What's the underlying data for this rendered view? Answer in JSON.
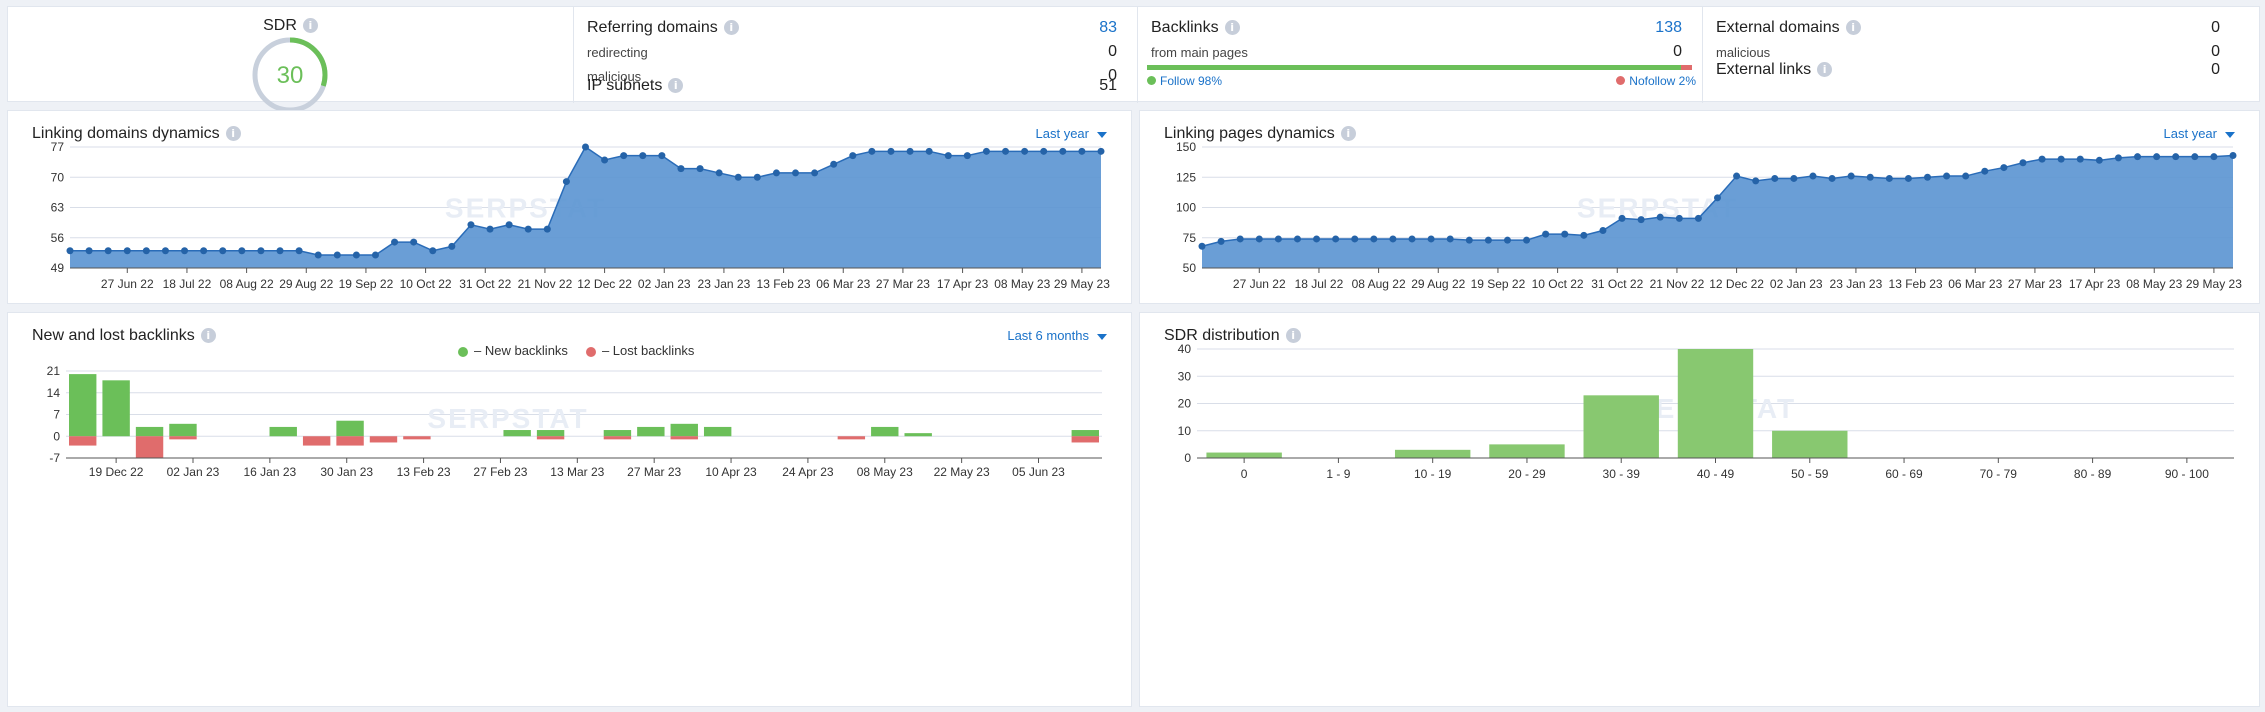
{
  "summary": {
    "sdr": {
      "label": "SDR",
      "value": "30",
      "score": 30,
      "color": "#6bbf59"
    },
    "referring": {
      "title": "Referring domains",
      "value": "83",
      "redirecting_label": "redirecting",
      "redirecting_value": "0",
      "malicious_label": "malicious",
      "malicious_value": "0",
      "ip_label": "IP subnets",
      "ip_value": "51"
    },
    "backlinks": {
      "title": "Backlinks",
      "value": "138",
      "from_main_label": "from main pages",
      "from_main_value": "0",
      "follow_label": "Follow 98%",
      "nofollow_label": "Nofollow 2%",
      "follow_pct": 98,
      "follow_color": "#6bbf59",
      "nofollow_color": "#e06c6c"
    },
    "external": {
      "title": "External domains",
      "value": "0",
      "malicious_label": "malicious",
      "malicious_value": "0",
      "links_title": "External links",
      "links_value": "0"
    }
  },
  "colors": {
    "accent": "#1a72c9",
    "area": "#5a93d1",
    "line": "#2a6cb8",
    "new": "#6bbf59",
    "lost": "#e06c6c",
    "sdr_bar": "#88c870"
  },
  "watermark": "SERPSTAT",
  "chart_data": [
    {
      "id": "linking-domains",
      "type": "area",
      "title": "Linking domains dynamics",
      "period": "Last year",
      "ylim": [
        49,
        77
      ],
      "yticks": [
        49,
        56,
        63,
        70,
        77
      ],
      "xtick_labels": [
        "27 Jun 22",
        "18 Jul 22",
        "08 Aug 22",
        "29 Aug 22",
        "19 Sep 22",
        "10 Oct 22",
        "31 Oct 22",
        "21 Nov 22",
        "12 Dec 22",
        "02 Jan 23",
        "23 Jan 23",
        "13 Feb 23",
        "06 Mar 23",
        "27 Mar 23",
        "17 Apr 23",
        "08 May 23",
        "29 May 23"
      ],
      "values": [
        53,
        53,
        53,
        53,
        53,
        53,
        53,
        53,
        53,
        53,
        53,
        53,
        53,
        52,
        52,
        52,
        52,
        55,
        55,
        53,
        54,
        59,
        58,
        59,
        58,
        58,
        69,
        77,
        74,
        75,
        75,
        75,
        72,
        72,
        71,
        70,
        70,
        71,
        71,
        71,
        73,
        75,
        76,
        76,
        76,
        76,
        75,
        75,
        76,
        76,
        76,
        76,
        76,
        76,
        76
      ]
    },
    {
      "id": "linking-pages",
      "type": "area",
      "title": "Linking pages dynamics",
      "period": "Last year",
      "ylim": [
        50,
        150
      ],
      "yticks": [
        50,
        75,
        100,
        125,
        150
      ],
      "xtick_labels": [
        "27 Jun 22",
        "18 Jul 22",
        "08 Aug 22",
        "29 Aug 22",
        "19 Sep 22",
        "10 Oct 22",
        "31 Oct 22",
        "21 Nov 22",
        "12 Dec 22",
        "02 Jan 23",
        "23 Jan 23",
        "13 Feb 23",
        "06 Mar 23",
        "27 Mar 23",
        "17 Apr 23",
        "08 May 23",
        "29 May 23"
      ],
      "values": [
        68,
        72,
        74,
        74,
        74,
        74,
        74,
        74,
        74,
        74,
        74,
        74,
        74,
        74,
        73,
        73,
        73,
        73,
        78,
        78,
        77,
        81,
        91,
        90,
        92,
        91,
        91,
        108,
        126,
        122,
        124,
        124,
        126,
        124,
        126,
        125,
        124,
        124,
        125,
        126,
        126,
        130,
        133,
        137,
        140,
        140,
        140,
        139,
        141,
        142,
        142,
        142,
        142,
        142,
        143
      ]
    },
    {
      "id": "new-lost",
      "type": "bar",
      "title": "New and lost backlinks",
      "period": "Last 6 months",
      "ylim": [
        -7,
        21
      ],
      "yticks": [
        -7,
        0,
        7,
        14,
        21
      ],
      "legend": [
        "– New backlinks",
        "– Lost backlinks"
      ],
      "xtick_labels": [
        "19 Dec 22",
        "02 Jan 23",
        "16 Jan 23",
        "30 Jan 23",
        "13 Feb 23",
        "27 Feb 23",
        "13 Mar 23",
        "27 Mar 23",
        "10 Apr 23",
        "24 Apr 23",
        "08 May 23",
        "22 May 23",
        "05 Jun 23"
      ],
      "series": [
        {
          "name": "New backlinks",
          "values": [
            20,
            18,
            3,
            4,
            0,
            0,
            3,
            0,
            5,
            0,
            0,
            0,
            0,
            2,
            2,
            0,
            2,
            3,
            4,
            3,
            0,
            0,
            0,
            0,
            3,
            1,
            0,
            0,
            0,
            0,
            2
          ]
        },
        {
          "name": "Lost backlinks",
          "values": [
            -3,
            0,
            -7,
            -1,
            0,
            0,
            0,
            -3,
            -3,
            -2,
            -1,
            0,
            0,
            0,
            -1,
            0,
            -1,
            0,
            -1,
            0,
            0,
            0,
            0,
            -1,
            0,
            0,
            0,
            0,
            0,
            0,
            -2
          ]
        }
      ]
    },
    {
      "id": "sdr-distribution",
      "type": "bar",
      "title": "SDR distribution",
      "ylim": [
        0,
        40
      ],
      "yticks": [
        0,
        10,
        20,
        30,
        40
      ],
      "categories": [
        "0",
        "1 - 9",
        "10 - 19",
        "20 - 29",
        "30 - 39",
        "40 - 49",
        "50 - 59",
        "60 - 69",
        "70 - 79",
        "80 - 89",
        "90 - 100"
      ],
      "values": [
        2,
        0,
        3,
        5,
        23,
        40,
        10,
        0,
        0,
        0,
        0
      ]
    }
  ]
}
